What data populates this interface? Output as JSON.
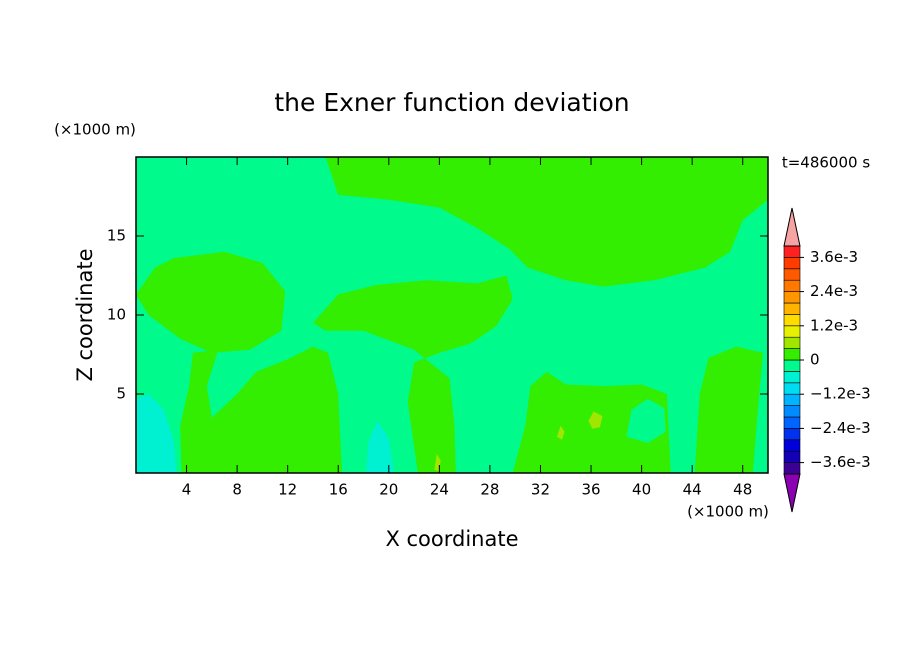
{
  "chart_data": {
    "type": "contour",
    "title": "the Exner function deviation",
    "xlabel": "X coordinate",
    "ylabel": "Z coordinate",
    "x_units": "(×1000 m)",
    "y_units": "(×1000 m)",
    "time_label": "t=486000 s",
    "xlim": [
      0,
      50
    ],
    "xticks": [
      4,
      8,
      12,
      16,
      20,
      24,
      28,
      32,
      36,
      40,
      44,
      48
    ],
    "ylim": [
      0,
      20
    ],
    "yticks": [
      5,
      10,
      15
    ],
    "colorbar": {
      "levels": [
        -0.004,
        -0.0036,
        -0.0032,
        -0.0028,
        -0.0024,
        -0.002,
        -0.0016,
        -0.0012,
        -0.0008,
        -0.0004,
        0,
        0.0004,
        0.0008,
        0.0012,
        0.0016,
        0.002,
        0.0024,
        0.0028,
        0.0032,
        0.0036,
        0.004
      ],
      "colors": [
        "#8c00b4",
        "#3c0096",
        "#1400b4",
        "#0000dc",
        "#0032f0",
        "#0064ff",
        "#008cff",
        "#00b4ff",
        "#00dcf0",
        "#00f0d2",
        "#00fa8c",
        "#33ee00",
        "#a0e600",
        "#e6f000",
        "#ffdc00",
        "#ffb400",
        "#ff9600",
        "#ff7800",
        "#ff5a00",
        "#ff3c00",
        "#ff2020",
        "#f5a3a3"
      ],
      "ticks": [
        {
          "value": -0.0036,
          "label": "−3.6e-3"
        },
        {
          "value": -0.0024,
          "label": "−2.4e-3"
        },
        {
          "value": -0.0012,
          "label": "−1.2e-3"
        },
        0,
        {
          "value": 0.0012,
          "label": "1.2e-3"
        },
        {
          "value": 0.0024,
          "label": "2.4e-3"
        },
        {
          "value": 0.0036,
          "label": "3.6e-3"
        }
      ]
    }
  }
}
